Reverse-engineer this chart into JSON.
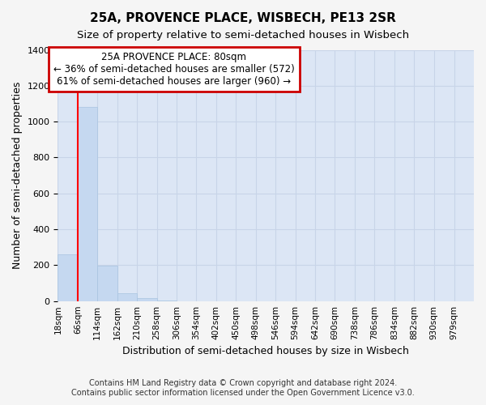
{
  "title1": "25A, PROVENCE PLACE, WISBECH, PE13 2SR",
  "title2": "Size of property relative to semi-detached houses in Wisbech",
  "xlabel": "Distribution of semi-detached houses by size in Wisbech",
  "ylabel": "Number of semi-detached properties",
  "footnote1": "Contains HM Land Registry data © Crown copyright and database right 2024.",
  "footnote2": "Contains public sector information licensed under the Open Government Licence v3.0.",
  "categories": [
    "18sqm",
    "66sqm",
    "114sqm",
    "162sqm",
    "210sqm",
    "258sqm",
    "306sqm",
    "354sqm",
    "402sqm",
    "450sqm",
    "498sqm",
    "546sqm",
    "594sqm",
    "642sqm",
    "690sqm",
    "738sqm",
    "786sqm",
    "834sqm",
    "882sqm",
    "930sqm",
    "979sqm"
  ],
  "bin_edges": [
    18,
    66,
    114,
    162,
    210,
    258,
    306,
    354,
    402,
    450,
    498,
    546,
    594,
    642,
    690,
    738,
    786,
    834,
    882,
    930,
    979
  ],
  "values": [
    260,
    1080,
    195,
    45,
    18,
    5,
    0,
    0,
    0,
    0,
    0,
    0,
    0,
    0,
    0,
    0,
    0,
    0,
    0,
    0
  ],
  "bar_color": "#c5d8f0",
  "bar_edge_color": "#a8c4e0",
  "grid_color": "#c8d4e8",
  "bg_color": "#dce6f5",
  "fig_bg_color": "#f5f5f5",
  "red_line_x": 66,
  "annotation_text": "25A PROVENCE PLACE: 80sqm\n← 36% of semi-detached houses are smaller (572)\n61% of semi-detached houses are larger (960) →",
  "annotation_box_color": "#cc0000",
  "annotation_bg": "#ffffff",
  "ylim": [
    0,
    1400
  ],
  "yticks": [
    0,
    200,
    400,
    600,
    800,
    1000,
    1200,
    1400
  ]
}
